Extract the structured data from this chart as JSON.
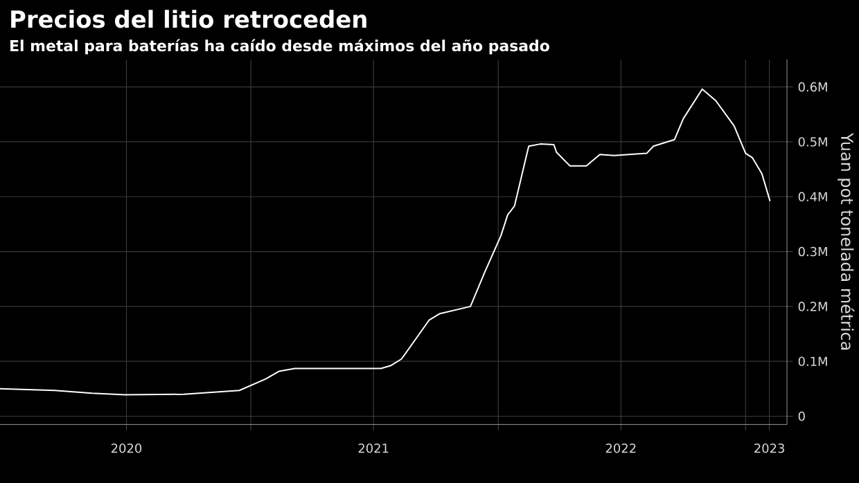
{
  "chart_data": {
    "type": "line",
    "title": "Precios del litio retroceden",
    "subtitle": "El metal para baterías ha caído desde máximos del año pasado",
    "ylabel": "Yuan pot tonelada métrica",
    "x": [
      "2019-12-27",
      "2020-03-17",
      "2020-05-11",
      "2020-06-29",
      "2020-09-24",
      "2020-12-15",
      "2021-01-23",
      "2021-02-12",
      "2021-03-07",
      "2021-05-16",
      "2021-07-12",
      "2021-07-26",
      "2021-08-11",
      "2021-08-17",
      "2021-09-21",
      "2021-10-07",
      "2021-11-21",
      "2021-12-12",
      "2022-01-05",
      "2022-01-15",
      "2022-01-25",
      "2022-02-15",
      "2022-03-04",
      "2022-03-24",
      "2022-03-28",
      "2022-04-17",
      "2022-05-11",
      "2022-05-31",
      "2022-06-21",
      "2022-08-08",
      "2022-08-18",
      "2022-09-18",
      "2022-10-01",
      "2022-10-29",
      "2022-11-18",
      "2022-12-15",
      "2023-01-01",
      "2023-01-11",
      "2023-01-25",
      "2023-02-06"
    ],
    "series": [
      {
        "color": "#ffffff",
        "values": [
          50000,
          47000,
          42000,
          39000,
          40000,
          47000,
          68000,
          82000,
          87000,
          87000,
          87000,
          92000,
          104000,
          114000,
          175000,
          187000,
          200000,
          262000,
          329000,
          367000,
          383000,
          492000,
          496000,
          495000,
          481000,
          456000,
          456000,
          477000,
          475000,
          479000,
          492000,
          504000,
          542000,
          596000,
          575000,
          529000,
          479000,
          471000,
          442000,
          392000
        ]
      }
    ],
    "xlim": [
      "2019-12-27",
      "2023-03-03"
    ],
    "xticks": [
      {
        "value": "2020-07-01",
        "label": "2020"
      },
      {
        "value": "2021-01-01",
        "label": null
      },
      {
        "value": "2021-07-01",
        "label": "2021"
      },
      {
        "value": "2022-01-01",
        "label": null
      },
      {
        "value": "2022-07-01",
        "label": "2022"
      },
      {
        "value": "2023-01-01",
        "label": null
      },
      {
        "value": "2023-02-05",
        "label": "2023"
      }
    ],
    "ylim": [
      -15000,
      650000
    ],
    "yticks": [
      0,
      {
        "value": 100000,
        "label": "0.1M"
      },
      {
        "value": 200000,
        "label": "0.2M"
      },
      {
        "value": 300000,
        "label": "0.3M"
      },
      {
        "value": 400000,
        "label": "0.4M"
      },
      {
        "value": 500000,
        "label": "0.5M"
      },
      {
        "value": 600000,
        "label": "0.6M"
      }
    ],
    "grid": true
  }
}
